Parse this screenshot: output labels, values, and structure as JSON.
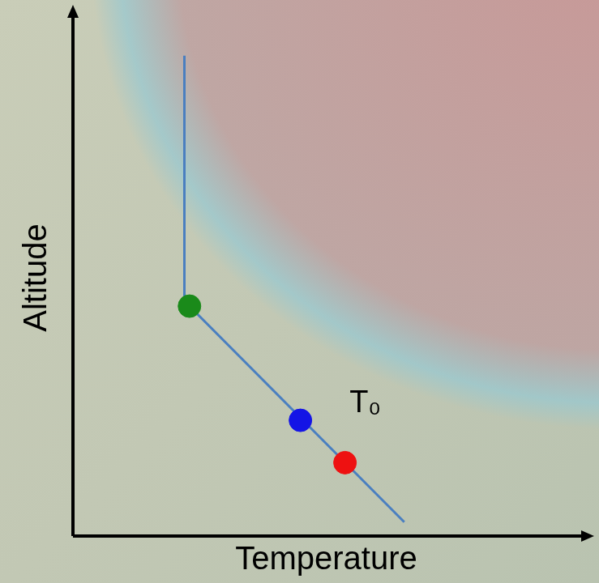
{
  "chart_data": {
    "type": "line",
    "x_label": "Temperature",
    "y_label": "Altitude",
    "xlim": [
      0,
      10
    ],
    "ylim": [
      0,
      10
    ],
    "tick_labels": false,
    "grid": false,
    "series": [
      {
        "type": "line",
        "color": "#4a7fc0",
        "x": [
          2.2,
          2.2,
          2.3,
          6.54
        ],
        "values": [
          9.3,
          4.6,
          4.45,
          0.27
        ]
      },
      {
        "type": "scatter",
        "marker": "circle",
        "colors": [
          "#1a8a1a",
          "#1414e6",
          "#ee1111"
        ],
        "x": [
          2.3,
          4.49,
          5.37
        ],
        "values": [
          4.45,
          2.24,
          1.42
        ]
      }
    ],
    "annotations": [
      {
        "text": "T₀",
        "x": 5.77,
        "y": 2.56
      }
    ]
  }
}
